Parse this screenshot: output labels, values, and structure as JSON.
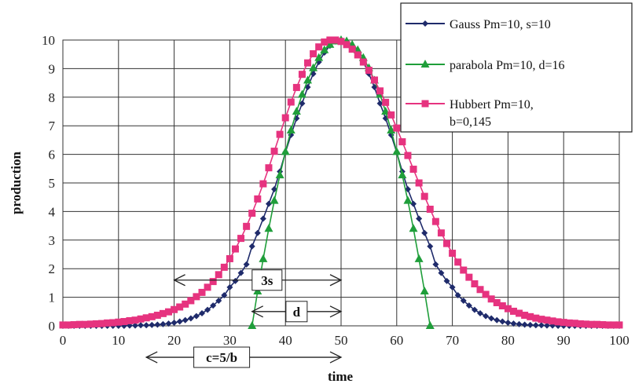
{
  "chart_data": {
    "type": "line",
    "xlabel": "time",
    "ylabel": "production",
    "xlim": [
      0,
      100
    ],
    "ylim": [
      0,
      10
    ],
    "x_ticks": [
      "0",
      "10",
      "20",
      "30",
      "40",
      "50",
      "60",
      "70",
      "80",
      "90",
      "100"
    ],
    "y_ticks": [
      "0",
      "1",
      "2",
      "3",
      "4",
      "5",
      "6",
      "7",
      "8",
      "9",
      "10"
    ],
    "grid": true,
    "legend_position": "top-right",
    "series": [
      {
        "name": "Gauss Pm=10, s=10",
        "color": "#1f2b6b",
        "marker": "diamond",
        "x": [
          0,
          1,
          2,
          3,
          4,
          5,
          6,
          7,
          8,
          9,
          10,
          11,
          12,
          13,
          14,
          15,
          16,
          17,
          18,
          19,
          20,
          21,
          22,
          23,
          24,
          25,
          26,
          27,
          28,
          29,
          30,
          31,
          32,
          33,
          34,
          35,
          36,
          37,
          38,
          39,
          40,
          41,
          42,
          43,
          44,
          45,
          46,
          47,
          48,
          49,
          50,
          51,
          52,
          53,
          54,
          55,
          56,
          57,
          58,
          59,
          60,
          61,
          62,
          63,
          64,
          65,
          66,
          67,
          68,
          69,
          70,
          71,
          72,
          73,
          74,
          75,
          76,
          77,
          78,
          79,
          80,
          81,
          82,
          83,
          84,
          85,
          86,
          87,
          88,
          89,
          90,
          91,
          92,
          93,
          94,
          95,
          96,
          97,
          98,
          99,
          100
        ],
        "values": [
          0.0,
          0.0,
          0.0,
          0.0,
          0.0,
          0.0,
          0.0,
          0.0,
          0.0,
          0.0,
          0.0,
          0.0,
          0.01,
          0.01,
          0.02,
          0.02,
          0.03,
          0.04,
          0.06,
          0.08,
          0.11,
          0.15,
          0.2,
          0.26,
          0.34,
          0.44,
          0.56,
          0.71,
          0.88,
          1.07,
          1.35,
          1.57,
          1.85,
          2.15,
          2.78,
          3.25,
          3.75,
          4.27,
          4.78,
          5.4,
          6.07,
          6.68,
          7.26,
          7.78,
          8.35,
          8.82,
          9.23,
          9.56,
          9.8,
          9.95,
          10.0,
          9.95,
          9.8,
          9.56,
          9.23,
          8.82,
          8.35,
          7.78,
          7.26,
          6.68,
          6.07,
          5.4,
          4.78,
          4.27,
          3.75,
          3.25,
          2.78,
          2.15,
          1.85,
          1.57,
          1.35,
          1.07,
          0.88,
          0.71,
          0.56,
          0.44,
          0.34,
          0.26,
          0.2,
          0.15,
          0.11,
          0.08,
          0.06,
          0.04,
          0.03,
          0.02,
          0.02,
          0.01,
          0.01,
          0.0,
          0.0,
          0.0,
          0.0,
          0.0,
          0.0,
          0.0,
          0.0,
          0.0,
          0.0,
          0.0,
          0.0
        ]
      },
      {
        "name": "parabola Pm=10, d=16",
        "color": "#1f9e3a",
        "marker": "triangle",
        "x": [
          34,
          35,
          36,
          37,
          38,
          39,
          40,
          41,
          42,
          43,
          44,
          45,
          46,
          47,
          48,
          49,
          50,
          51,
          52,
          53,
          54,
          55,
          56,
          57,
          58,
          59,
          60,
          61,
          62,
          63,
          64,
          65,
          66
        ],
        "values": [
          0.0,
          1.21,
          2.34,
          3.4,
          4.38,
          5.27,
          6.09,
          6.84,
          7.5,
          8.09,
          8.59,
          9.02,
          9.38,
          9.65,
          9.84,
          9.96,
          10.0,
          9.96,
          9.84,
          9.65,
          9.38,
          9.02,
          8.59,
          8.09,
          7.5,
          6.84,
          6.09,
          5.27,
          4.38,
          3.4,
          2.34,
          1.21,
          0.0
        ]
      },
      {
        "name": "Hubbert Pm=10, b=0,145",
        "color": "#e6337f",
        "marker": "square",
        "x": [
          0,
          1,
          2,
          3,
          4,
          5,
          6,
          7,
          8,
          9,
          10,
          11,
          12,
          13,
          14,
          15,
          16,
          17,
          18,
          19,
          20,
          21,
          22,
          23,
          24,
          25,
          26,
          27,
          28,
          29,
          30,
          31,
          32,
          33,
          34,
          35,
          36,
          37,
          38,
          39,
          40,
          41,
          42,
          43,
          44,
          45,
          46,
          47,
          48,
          49,
          50,
          51,
          52,
          53,
          54,
          55,
          56,
          57,
          58,
          59,
          60,
          61,
          62,
          63,
          64,
          65,
          66,
          67,
          68,
          69,
          70,
          71,
          72,
          73,
          74,
          75,
          76,
          77,
          78,
          79,
          80,
          81,
          82,
          83,
          84,
          85,
          86,
          87,
          88,
          89,
          90,
          91,
          92,
          93,
          94,
          95,
          96,
          97,
          98,
          99,
          100
        ],
        "values": [
          0.03,
          0.03,
          0.04,
          0.05,
          0.05,
          0.06,
          0.07,
          0.08,
          0.1,
          0.11,
          0.13,
          0.15,
          0.18,
          0.2,
          0.24,
          0.28,
          0.32,
          0.37,
          0.43,
          0.49,
          0.57,
          0.66,
          0.76,
          0.88,
          1.02,
          1.17,
          1.35,
          1.55,
          1.79,
          2.05,
          2.35,
          2.69,
          3.06,
          3.48,
          3.94,
          4.44,
          4.97,
          5.53,
          6.11,
          6.7,
          7.28,
          7.83,
          8.34,
          8.8,
          9.2,
          9.52,
          9.76,
          9.93,
          10.0,
          10.0,
          9.95,
          9.84,
          9.68,
          9.48,
          9.23,
          8.94,
          8.6,
          8.22,
          7.82,
          7.38,
          6.92,
          6.44,
          5.96,
          5.48,
          5.0,
          4.53,
          4.08,
          3.65,
          3.25,
          2.88,
          2.54,
          2.23,
          1.95,
          1.7,
          1.47,
          1.27,
          1.1,
          0.94,
          0.81,
          0.7,
          0.6,
          0.51,
          0.44,
          0.37,
          0.32,
          0.27,
          0.23,
          0.2,
          0.17,
          0.14,
          0.12,
          0.1,
          0.09,
          0.07,
          0.06,
          0.05,
          0.05,
          0.04,
          0.03,
          0.03,
          0.03
        ]
      }
    ],
    "annotations": [
      {
        "label": "3s",
        "from": 20,
        "to": 50,
        "y": 1.6
      },
      {
        "label": "d",
        "from": 34,
        "to": 50,
        "y": 0.5
      },
      {
        "label": "c=5/b",
        "from": 15,
        "to": 50,
        "y": -1.1
      }
    ]
  }
}
